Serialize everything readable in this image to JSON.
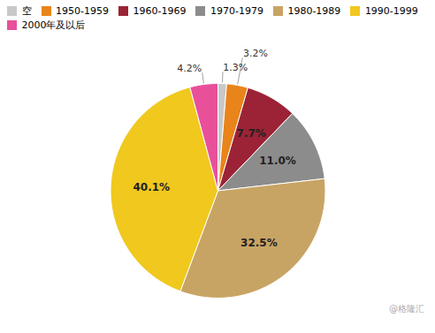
{
  "chart_data": {
    "type": "pie",
    "categories": [
      "空",
      "1950-1959",
      "1960-1969",
      "1970-1979",
      "1980-1989",
      "1990-1999",
      "2000年及以后"
    ],
    "values": [
      1.3,
      3.2,
      7.7,
      11.0,
      32.5,
      40.1,
      4.2
    ],
    "value_labels": [
      "1.3%",
      "3.2%",
      "7.7%",
      "11.0%",
      "32.5%",
      "40.1%",
      "4.2%"
    ],
    "colors": [
      "#C8C8C8",
      "#E8841A",
      "#9B2335",
      "#8C8C8C",
      "#C8A464",
      "#F0C81E",
      "#E8509A"
    ],
    "data_labels": true,
    "legend": "top",
    "annotations": [
      {
        "text": "@格隆汇"
      }
    ]
  }
}
